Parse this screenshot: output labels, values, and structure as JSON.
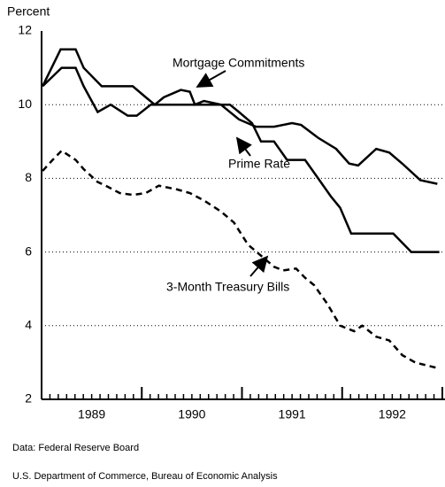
{
  "chart_data": {
    "type": "line",
    "y_label": "Percent",
    "xlim": [
      1989,
      1993
    ],
    "ylim": [
      2,
      12
    ],
    "yticks": [
      2,
      4,
      6,
      8,
      10,
      12
    ],
    "xticks": [
      {
        "value": 1989.5,
        "label": "1989"
      },
      {
        "value": 1990.5,
        "label": "1990"
      },
      {
        "value": 1991.5,
        "label": "1991"
      },
      {
        "value": 1992.5,
        "label": "1992"
      }
    ],
    "grid": true,
    "series": [
      {
        "name": "Mortgage Commitments",
        "color": "#000000",
        "dashed": false,
        "x": [
          1989.01,
          1989.19,
          1989.34,
          1989.42,
          1989.6,
          1989.91,
          1990.04,
          1990.13,
          1990.22,
          1990.39,
          1990.48,
          1990.53,
          1990.62,
          1990.79,
          1990.97,
          1991.14,
          1991.32,
          1991.5,
          1991.59,
          1991.76,
          1991.94,
          1992.07,
          1992.16,
          1992.34,
          1992.47,
          1992.6,
          1992.78,
          1992.95
        ],
        "values": [
          10.5,
          11.5,
          11.5,
          11.0,
          10.5,
          10.5,
          10.2,
          10.0,
          10.2,
          10.4,
          10.35,
          10.0,
          10.1,
          10.0,
          9.6,
          9.4,
          9.4,
          9.5,
          9.45,
          9.1,
          8.8,
          8.4,
          8.35,
          8.8,
          8.7,
          8.4,
          7.95,
          7.85
        ]
      },
      {
        "name": "Prime Rate",
        "color": "#000000",
        "dashed": false,
        "x": [
          1989.01,
          1989.2,
          1989.34,
          1989.42,
          1989.56,
          1989.69,
          1989.86,
          1989.95,
          1990.09,
          1990.88,
          1990.97,
          1991.1,
          1991.19,
          1991.32,
          1991.45,
          1991.63,
          1991.76,
          1991.89,
          1991.98,
          1992.09,
          1992.51,
          1992.69,
          1992.97
        ],
        "values": [
          10.5,
          11.0,
          11.0,
          10.5,
          9.8,
          10.0,
          9.7,
          9.7,
          10.0,
          10.0,
          9.8,
          9.5,
          9.0,
          9.0,
          8.5,
          8.5,
          8.0,
          7.5,
          7.2,
          6.5,
          6.5,
          6.0,
          6.0
        ]
      },
      {
        "name": "3-Month Treasury Bills",
        "color": "#000000",
        "dashed": true,
        "x": [
          1989.01,
          1989.11,
          1989.2,
          1989.34,
          1989.42,
          1989.56,
          1989.64,
          1989.78,
          1989.91,
          1990.04,
          1990.17,
          1990.35,
          1990.48,
          1990.62,
          1990.79,
          1990.92,
          1991.06,
          1991.19,
          1991.32,
          1991.41,
          1991.54,
          1991.63,
          1991.72,
          1991.85,
          1991.98,
          1992.12,
          1992.2,
          1992.34,
          1992.47,
          1992.6,
          1992.73,
          1992.95
        ],
        "values": [
          8.2,
          8.5,
          8.75,
          8.5,
          8.25,
          7.9,
          7.8,
          7.6,
          7.55,
          7.6,
          7.8,
          7.7,
          7.6,
          7.4,
          7.1,
          6.8,
          6.2,
          5.9,
          5.6,
          5.5,
          5.55,
          5.3,
          5.1,
          4.6,
          4.0,
          3.85,
          4.0,
          3.7,
          3.6,
          3.2,
          3.0,
          2.85
        ]
      }
    ],
    "sources": [
      "Data:  Federal Reserve Board",
      "U.S. Department of Commerce, Bureau of Economic Analysis"
    ]
  }
}
